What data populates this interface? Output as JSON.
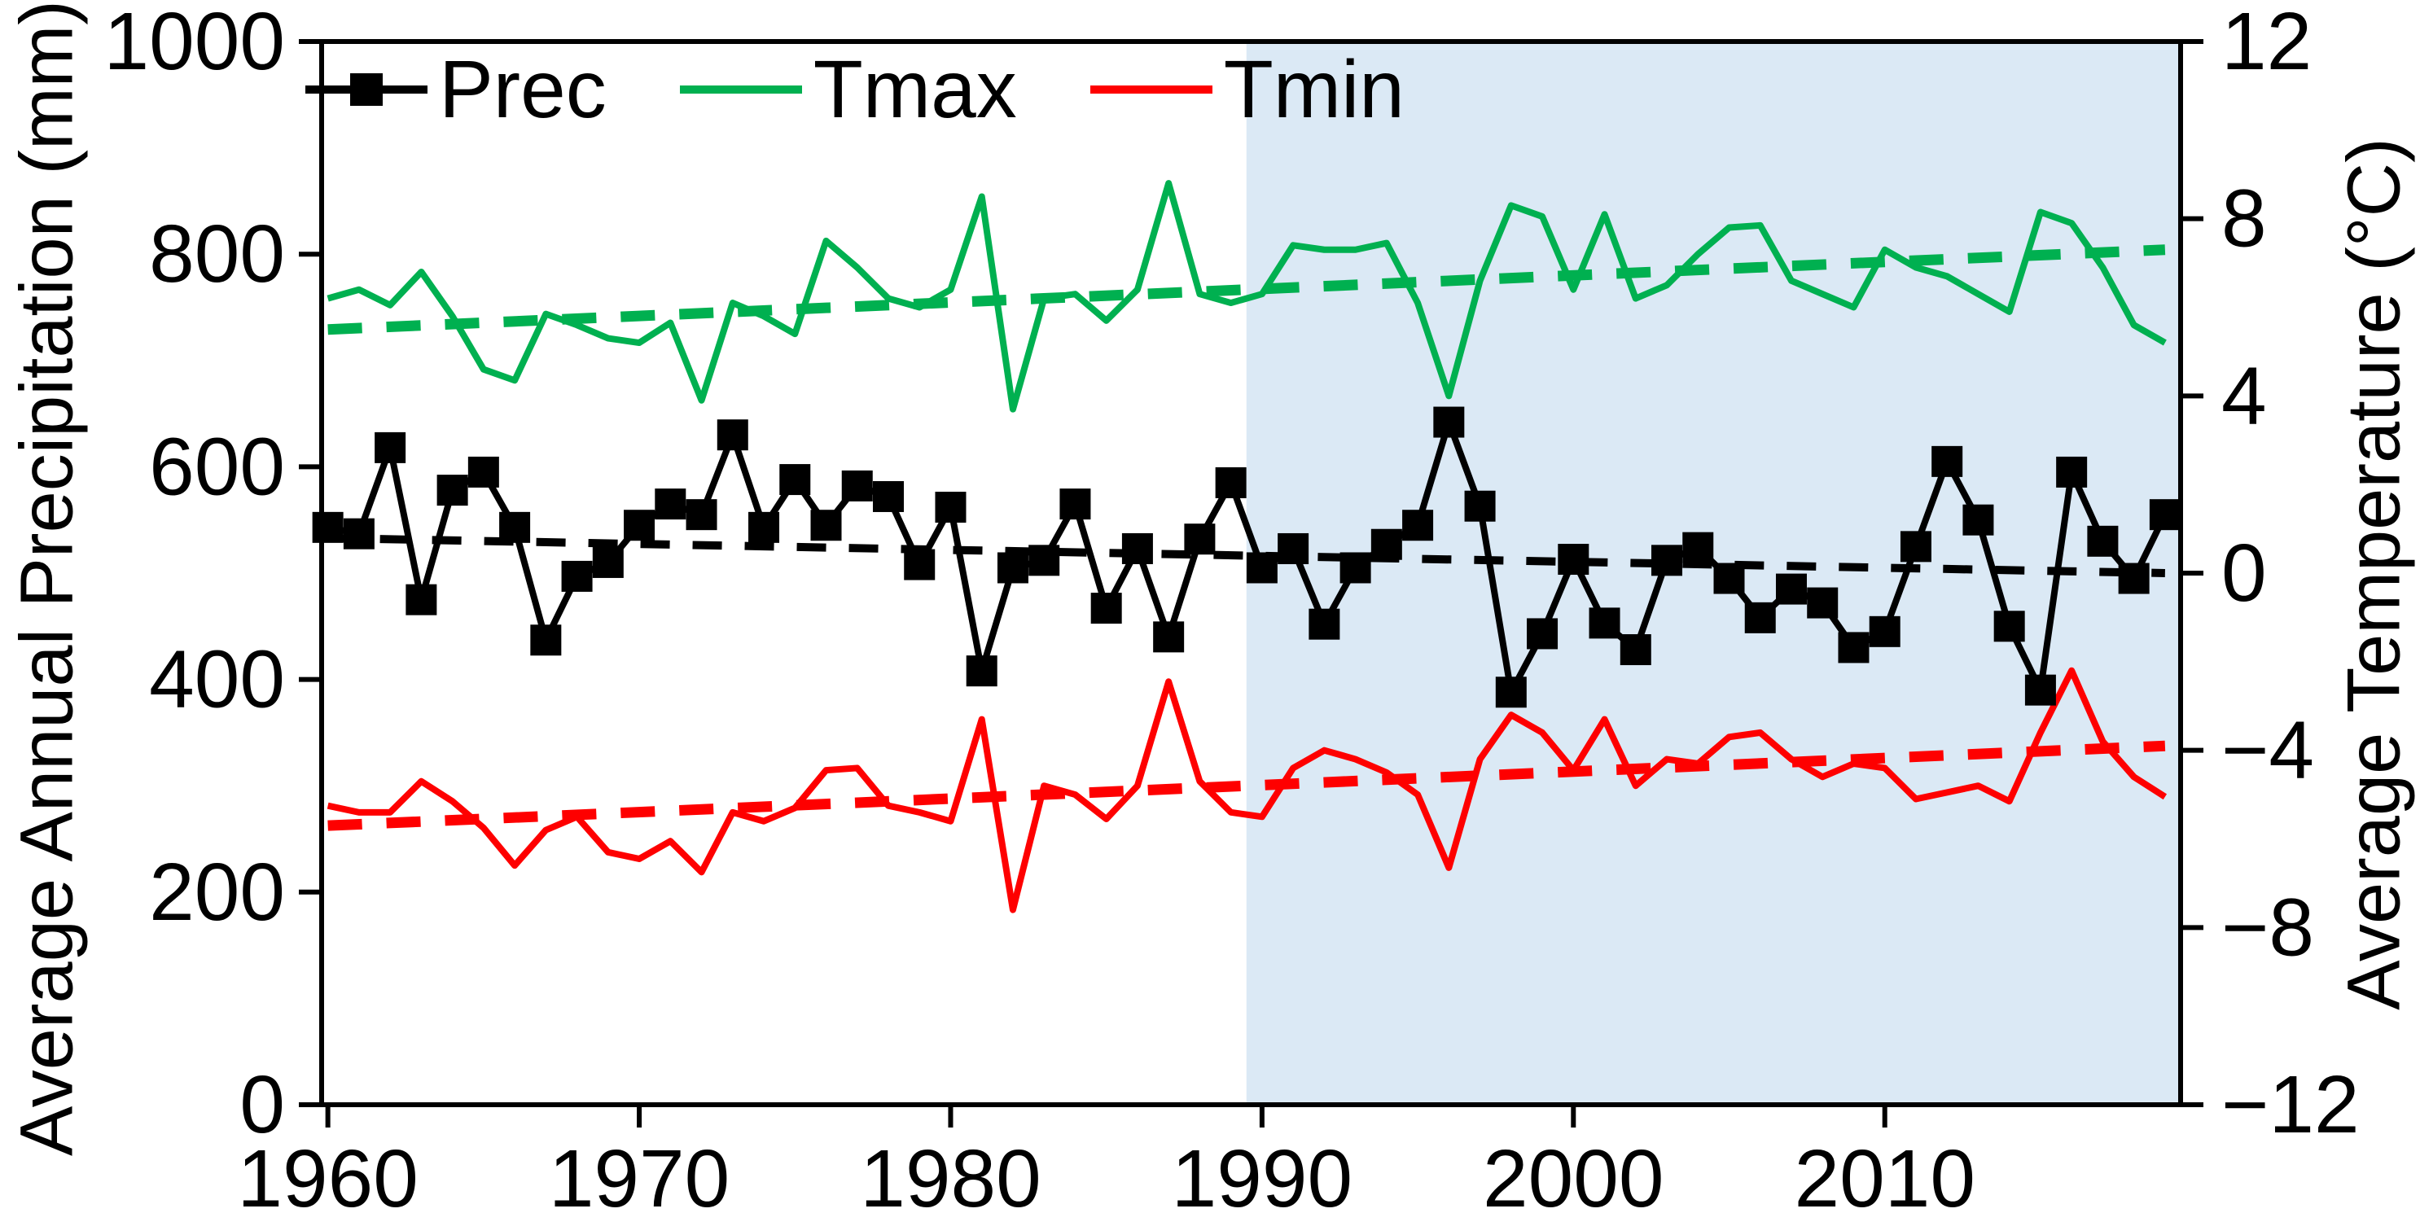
{
  "figure": {
    "left_axis_title": "Average Annual Precipitation (mm)",
    "right_axis_title": "Average Temperature (°C)",
    "colors": {
      "prec": "#000000",
      "tmax": "#00b050",
      "tmin": "#fe0000",
      "shading": "#dbe9f5",
      "frame": "#000000",
      "background": "#ffffff"
    }
  },
  "legend": {
    "items": [
      {
        "label": "Prec",
        "color": "#000000",
        "marker": "square-line"
      },
      {
        "label": "Tmax",
        "color": "#00b050",
        "marker": "line"
      },
      {
        "label": "Tmin",
        "color": "#fe0000",
        "marker": "line"
      }
    ]
  },
  "chart_data": {
    "type": "line",
    "title": "",
    "xlabel": "",
    "ylabel_left": "Average Annual Precipitation (mm)",
    "ylabel_right": "Average Temperature (°C)",
    "x": [
      1960,
      1961,
      1962,
      1963,
      1964,
      1965,
      1966,
      1967,
      1968,
      1969,
      1970,
      1971,
      1972,
      1973,
      1974,
      1975,
      1976,
      1977,
      1978,
      1979,
      1980,
      1981,
      1982,
      1983,
      1984,
      1985,
      1986,
      1987,
      1988,
      1989,
      1990,
      1991,
      1992,
      1993,
      1994,
      1995,
      1996,
      1997,
      1998,
      1999,
      2000,
      2001,
      2002,
      2003,
      2004,
      2005,
      2006,
      2007,
      2008,
      2009,
      2010,
      2011,
      2012,
      2013,
      2014,
      2015,
      2016,
      2017,
      2018,
      2019
    ],
    "x_tick_labels": [
      "1960",
      "1970",
      "1980",
      "1990",
      "2000",
      "2010"
    ],
    "x_tick_years": [
      1960,
      1970,
      1980,
      1990,
      2000,
      2010
    ],
    "ylim_left": [
      0,
      1000
    ],
    "y_ticks_left": [
      "1000",
      "800",
      "600",
      "400",
      "200",
      "0"
    ],
    "y_tick_values_left": [
      1000,
      800,
      600,
      400,
      200,
      0
    ],
    "ylim_right": [
      -12,
      12
    ],
    "y_ticks_right": [
      "12",
      "8",
      "4",
      "0",
      "−4",
      "−8",
      "−12"
    ],
    "y_tick_values_right": [
      12,
      8,
      4,
      0,
      -4,
      -8,
      -12
    ],
    "grid": false,
    "legend_position": "top-center-inside",
    "shaded_region": {
      "start_year": 1990,
      "end": "right-edge",
      "color": "#dbe9f5"
    },
    "series": [
      {
        "name": "Prec",
        "axis": "left",
        "units": "mm",
        "color": "#000000",
        "marker": "square",
        "values": [
          543,
          537,
          618,
          475,
          578,
          595,
          543,
          437,
          497,
          510,
          545,
          565,
          555,
          630,
          543,
          588,
          545,
          582,
          572,
          508,
          562,
          408,
          505,
          512,
          565,
          467,
          523,
          440,
          532,
          585,
          505,
          523,
          452,
          505,
          527,
          545,
          642,
          563,
          388,
          443,
          513,
          453,
          428,
          512,
          524,
          495,
          458,
          485,
          472,
          430,
          445,
          525,
          605,
          550,
          450,
          390,
          595,
          530,
          495,
          555
        ]
      },
      {
        "name": "Tmax",
        "axis": "right",
        "units": "°C",
        "color": "#00b050",
        "marker": "none",
        "values": [
          6.2,
          6.4,
          6.05,
          6.8,
          5.8,
          4.6,
          4.35,
          5.85,
          5.6,
          5.3,
          5.2,
          5.65,
          3.9,
          6.1,
          5.8,
          5.4,
          7.5,
          6.9,
          6.2,
          6.0,
          6.4,
          8.5,
          3.7,
          6.2,
          6.3,
          5.7,
          6.4,
          8.8,
          6.3,
          6.1,
          6.3,
          7.4,
          7.3,
          7.3,
          7.45,
          6.1,
          4.0,
          6.6,
          8.3,
          8.05,
          6.4,
          8.1,
          6.2,
          6.5,
          7.2,
          7.8,
          7.85,
          6.6,
          6.3,
          6.0,
          7.3,
          6.9,
          6.7,
          6.3,
          5.9,
          8.15,
          7.9,
          6.9,
          5.6,
          5.2
        ]
      },
      {
        "name": "Tmin",
        "axis": "right",
        "units": "°C",
        "color": "#fe0000",
        "marker": "none",
        "values": [
          -5.25,
          -5.4,
          -5.4,
          -4.7,
          -5.15,
          -5.75,
          -6.6,
          -5.8,
          -5.5,
          -6.3,
          -6.45,
          -6.05,
          -6.75,
          -5.4,
          -5.6,
          -5.3,
          -4.45,
          -4.4,
          -5.25,
          -5.4,
          -5.6,
          -3.3,
          -7.6,
          -4.8,
          -5.0,
          -5.55,
          -4.8,
          -2.45,
          -4.7,
          -5.4,
          -5.5,
          -4.4,
          -4.0,
          -4.2,
          -4.5,
          -5.0,
          -6.65,
          -4.2,
          -3.2,
          -3.6,
          -4.45,
          -3.3,
          -4.8,
          -4.2,
          -4.3,
          -3.7,
          -3.6,
          -4.2,
          -4.6,
          -4.3,
          -4.4,
          -5.1,
          -4.95,
          -4.8,
          -5.15,
          -3.6,
          -2.2,
          -3.8,
          -4.6,
          -5.05
        ]
      }
    ],
    "trend_lines": [
      {
        "name": "Prec trend",
        "axis": "left",
        "color": "#000000",
        "style": "dashed",
        "start_value": 533,
        "end_value": 500
      },
      {
        "name": "Tmax trend",
        "axis": "right",
        "color": "#00b050",
        "style": "dashed",
        "start_value": 5.5,
        "end_value": 7.3
      },
      {
        "name": "Tmin trend",
        "axis": "right",
        "color": "#fe0000",
        "style": "dashed",
        "start_value": -5.7,
        "end_value": -3.9
      }
    ]
  }
}
